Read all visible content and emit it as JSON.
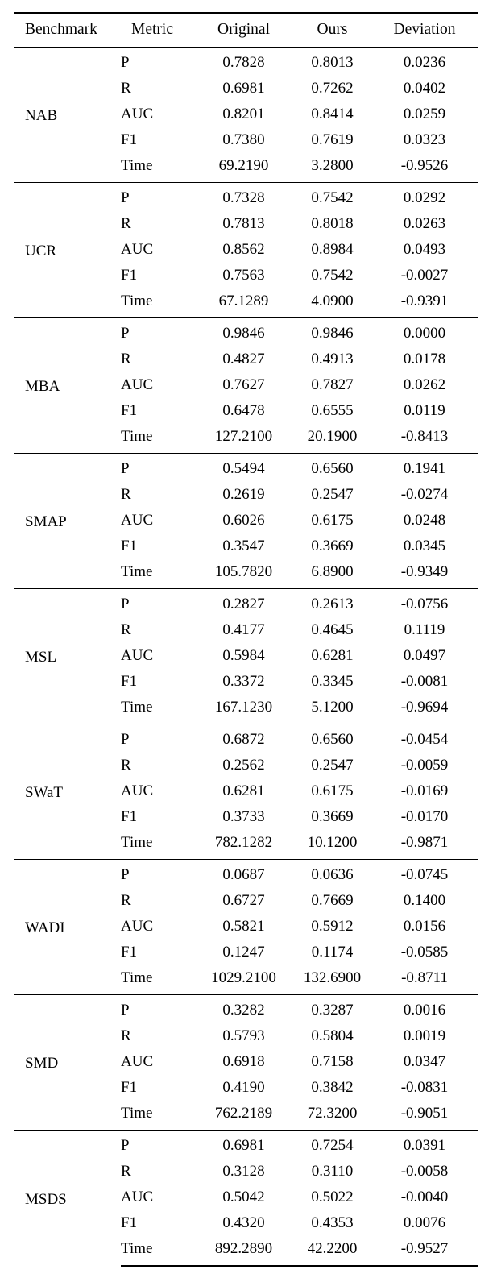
{
  "table": {
    "columns": [
      "Benchmark",
      "Metric",
      "Original",
      "Ours",
      "Deviation"
    ],
    "groups": [
      {
        "benchmark": "NAB",
        "rows": [
          {
            "metric": "P",
            "original": "0.7828",
            "ours": "0.8013",
            "deviation": "0.0236"
          },
          {
            "metric": "R",
            "original": "0.6981",
            "ours": "0.7262",
            "deviation": "0.0402"
          },
          {
            "metric": "AUC",
            "original": "0.8201",
            "ours": "0.8414",
            "deviation": "0.0259"
          },
          {
            "metric": "F1",
            "original": "0.7380",
            "ours": "0.7619",
            "deviation": "0.0323"
          },
          {
            "metric": "Time",
            "original": "69.2190",
            "ours": "3.2800",
            "deviation": "-0.9526"
          }
        ]
      },
      {
        "benchmark": "UCR",
        "rows": [
          {
            "metric": "P",
            "original": "0.7328",
            "ours": "0.7542",
            "deviation": "0.0292"
          },
          {
            "metric": "R",
            "original": "0.7813",
            "ours": "0.8018",
            "deviation": "0.0263"
          },
          {
            "metric": "AUC",
            "original": "0.8562",
            "ours": "0.8984",
            "deviation": "0.0493"
          },
          {
            "metric": "F1",
            "original": "0.7563",
            "ours": "0.7542",
            "deviation": "-0.0027"
          },
          {
            "metric": "Time",
            "original": "67.1289",
            "ours": "4.0900",
            "deviation": "-0.9391"
          }
        ]
      },
      {
        "benchmark": "MBA",
        "rows": [
          {
            "metric": "P",
            "original": "0.9846",
            "ours": "0.9846",
            "deviation": "0.0000"
          },
          {
            "metric": "R",
            "original": "0.4827",
            "ours": "0.4913",
            "deviation": "0.0178"
          },
          {
            "metric": "AUC",
            "original": "0.7627",
            "ours": "0.7827",
            "deviation": "0.0262"
          },
          {
            "metric": "F1",
            "original": "0.6478",
            "ours": "0.6555",
            "deviation": "0.0119"
          },
          {
            "metric": "Time",
            "original": "127.2100",
            "ours": "20.1900",
            "deviation": "-0.8413"
          }
        ]
      },
      {
        "benchmark": "SMAP",
        "rows": [
          {
            "metric": "P",
            "original": "0.5494",
            "ours": "0.6560",
            "deviation": "0.1941"
          },
          {
            "metric": "R",
            "original": "0.2619",
            "ours": "0.2547",
            "deviation": "-0.0274"
          },
          {
            "metric": "AUC",
            "original": "0.6026",
            "ours": "0.6175",
            "deviation": "0.0248"
          },
          {
            "metric": "F1",
            "original": "0.3547",
            "ours": "0.3669",
            "deviation": "0.0345"
          },
          {
            "metric": "Time",
            "original": "105.7820",
            "ours": "6.8900",
            "deviation": "-0.9349"
          }
        ]
      },
      {
        "benchmark": "MSL",
        "rows": [
          {
            "metric": "P",
            "original": "0.2827",
            "ours": "0.2613",
            "deviation": "-0.0756"
          },
          {
            "metric": "R",
            "original": "0.4177",
            "ours": "0.4645",
            "deviation": "0.1119"
          },
          {
            "metric": "AUC",
            "original": "0.5984",
            "ours": "0.6281",
            "deviation": "0.0497"
          },
          {
            "metric": "F1",
            "original": "0.3372",
            "ours": "0.3345",
            "deviation": "-0.0081"
          },
          {
            "metric": "Time",
            "original": "167.1230",
            "ours": "5.1200",
            "deviation": "-0.9694"
          }
        ]
      },
      {
        "benchmark": "SWaT",
        "rows": [
          {
            "metric": "P",
            "original": "0.6872",
            "ours": "0.6560",
            "deviation": "-0.0454"
          },
          {
            "metric": "R",
            "original": "0.2562",
            "ours": "0.2547",
            "deviation": "-0.0059"
          },
          {
            "metric": "AUC",
            "original": "0.6281",
            "ours": "0.6175",
            "deviation": "-0.0169"
          },
          {
            "metric": "F1",
            "original": "0.3733",
            "ours": "0.3669",
            "deviation": "-0.0170"
          },
          {
            "metric": "Time",
            "original": "782.1282",
            "ours": "10.1200",
            "deviation": "-0.9871"
          }
        ]
      },
      {
        "benchmark": "WADI",
        "rows": [
          {
            "metric": "P",
            "original": "0.0687",
            "ours": "0.0636",
            "deviation": "-0.0745"
          },
          {
            "metric": "R",
            "original": "0.6727",
            "ours": "0.7669",
            "deviation": "0.1400"
          },
          {
            "metric": "AUC",
            "original": "0.5821",
            "ours": "0.5912",
            "deviation": "0.0156"
          },
          {
            "metric": "F1",
            "original": "0.1247",
            "ours": "0.1174",
            "deviation": "-0.0585"
          },
          {
            "metric": "Time",
            "original": "1029.2100",
            "ours": "132.6900",
            "deviation": "-0.8711"
          }
        ]
      },
      {
        "benchmark": "SMD",
        "rows": [
          {
            "metric": "P",
            "original": "0.3282",
            "ours": "0.3287",
            "deviation": "0.0016"
          },
          {
            "metric": "R",
            "original": "0.5793",
            "ours": "0.5804",
            "deviation": "0.0019"
          },
          {
            "metric": "AUC",
            "original": "0.6918",
            "ours": "0.7158",
            "deviation": "0.0347"
          },
          {
            "metric": "F1",
            "original": "0.4190",
            "ours": "0.3842",
            "deviation": "-0.0831"
          },
          {
            "metric": "Time",
            "original": "762.2189",
            "ours": "72.3200",
            "deviation": "-0.9051"
          }
        ]
      },
      {
        "benchmark": "MSDS",
        "rows": [
          {
            "metric": "P",
            "original": "0.6981",
            "ours": "0.7254",
            "deviation": "0.0391"
          },
          {
            "metric": "R",
            "original": "0.3128",
            "ours": "0.3110",
            "deviation": "-0.0058"
          },
          {
            "metric": "AUC",
            "original": "0.5042",
            "ours": "0.5022",
            "deviation": "-0.0040"
          },
          {
            "metric": "F1",
            "original": "0.4320",
            "ours": "0.4353",
            "deviation": "0.0076"
          },
          {
            "metric": "Time",
            "original": "892.2890",
            "ours": "42.2200",
            "deviation": "-0.9527"
          }
        ]
      }
    ]
  }
}
